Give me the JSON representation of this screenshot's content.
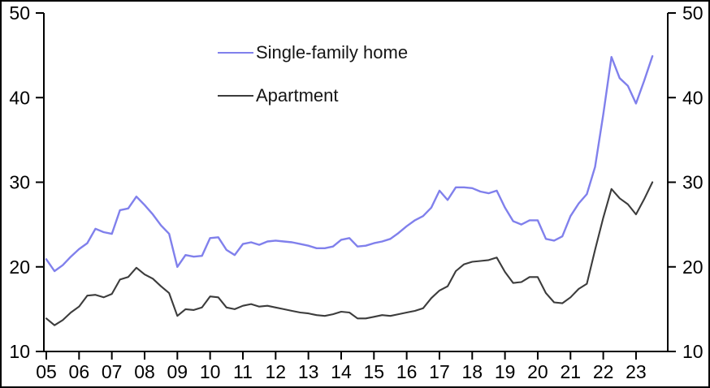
{
  "chart_data": {
    "type": "line",
    "title": "",
    "frequency": "quarterly",
    "x_start": 2005.0,
    "x_step": 0.25,
    "x_tick_labels": [
      "05",
      "06",
      "07",
      "08",
      "09",
      "10",
      "11",
      "12",
      "13",
      "14",
      "15",
      "16",
      "17",
      "18",
      "19",
      "20",
      "21",
      "22",
      "23"
    ],
    "y_ticks": [
      10,
      20,
      30,
      40,
      50
    ],
    "ylim": [
      10,
      50
    ],
    "grid": false,
    "axes": {
      "left": true,
      "right": true,
      "bottom": true,
      "top": false
    },
    "legend_position": "top-center",
    "axis_color": "#000000",
    "series": [
      {
        "name": "Single-family home",
        "color": "#8080EC",
        "values": [
          20.9,
          19.5,
          20.2,
          21.2,
          22.1,
          22.8,
          24.5,
          24.1,
          23.9,
          26.7,
          26.9,
          28.3,
          27.3,
          26.2,
          24.9,
          23.9,
          20.0,
          21.4,
          21.2,
          21.3,
          23.4,
          23.5,
          22.0,
          21.4,
          22.7,
          22.9,
          22.6,
          23.0,
          23.1,
          23.0,
          22.9,
          22.7,
          22.5,
          22.2,
          22.2,
          22.4,
          23.2,
          23.4,
          22.4,
          22.5,
          22.8,
          23.0,
          23.3,
          24.0,
          24.8,
          25.5,
          26.0,
          27.0,
          29.0,
          27.9,
          29.4,
          29.4,
          29.3,
          28.9,
          28.7,
          29.0,
          27.0,
          25.4,
          25.0,
          25.5,
          25.5,
          23.3,
          23.1,
          23.6,
          26.0,
          27.5,
          28.6,
          31.8,
          38.0,
          44.8,
          42.3,
          41.4,
          39.3,
          42.0,
          44.9
        ]
      },
      {
        "name": "Apartment",
        "color": "#3C3C3C",
        "values": [
          13.9,
          13.1,
          13.7,
          14.6,
          15.3,
          16.6,
          16.7,
          16.4,
          16.8,
          18.5,
          18.8,
          19.9,
          19.1,
          18.6,
          17.7,
          16.9,
          14.2,
          15.0,
          14.9,
          15.2,
          16.5,
          16.4,
          15.2,
          15.0,
          15.4,
          15.6,
          15.3,
          15.4,
          15.2,
          15.0,
          14.8,
          14.6,
          14.5,
          14.3,
          14.2,
          14.4,
          14.7,
          14.6,
          13.9,
          13.9,
          14.1,
          14.3,
          14.2,
          14.4,
          14.6,
          14.8,
          15.1,
          16.3,
          17.2,
          17.7,
          19.5,
          20.3,
          20.6,
          20.7,
          20.8,
          21.1,
          19.4,
          18.1,
          18.2,
          18.8,
          18.8,
          16.9,
          15.8,
          15.7,
          16.4,
          17.4,
          18.0,
          22.0,
          25.8,
          29.2,
          28.1,
          27.4,
          26.2,
          28.0,
          30.0
        ]
      }
    ]
  }
}
